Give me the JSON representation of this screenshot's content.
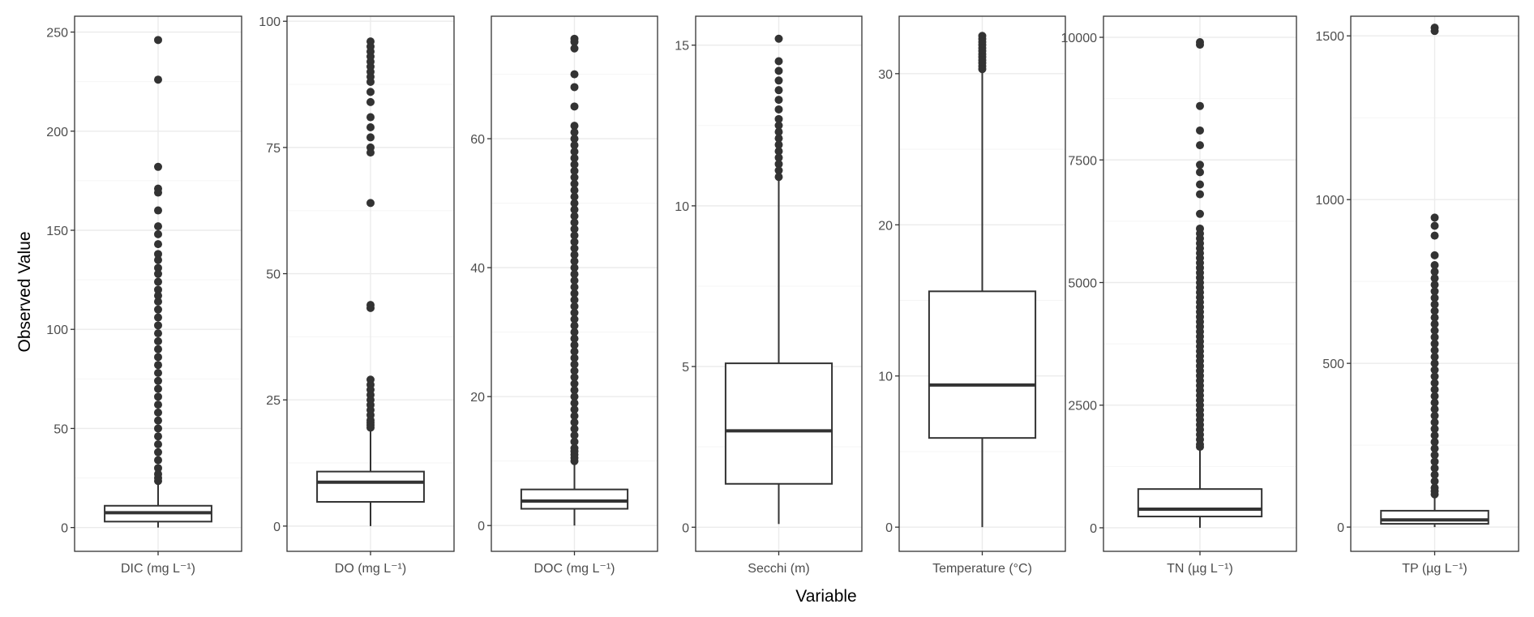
{
  "chart_data": {
    "type": "box",
    "xlabel": "Variable",
    "ylabel": "Observed Value",
    "grid": true,
    "colors": {
      "background": "#ffffff",
      "grid_major": "#ebebeb",
      "grid_minor": "#f5f5f5",
      "box_line": "#333333",
      "outlier": "#333333",
      "panel_border": "#333333",
      "tick_text": "#4d4d4d"
    },
    "panels": [
      {
        "category": "DIC (mg L⁻¹)",
        "ylim": [
          -12,
          258
        ],
        "yticks": [
          0,
          50,
          100,
          150,
          200,
          250
        ],
        "tick_labels": [
          "0",
          "50",
          "100",
          "150",
          "200",
          "250"
        ],
        "box": {
          "min": 0,
          "q1": 3,
          "median": 7.5,
          "q3": 11,
          "max": 23
        },
        "outliers": [
          246,
          226,
          182,
          171,
          169,
          160,
          152,
          148,
          143,
          138,
          135,
          131,
          128,
          124,
          120,
          117,
          114,
          110,
          106,
          102,
          98,
          94,
          90,
          86,
          82,
          78,
          74,
          70,
          66,
          62,
          58,
          54,
          50,
          46,
          42,
          38,
          34,
          30,
          27,
          25,
          23.5
        ]
      },
      {
        "category": "DO (mg L⁻¹)",
        "ylim": [
          -5,
          101
        ],
        "yticks": [
          0,
          25,
          50,
          75,
          100
        ],
        "tick_labels": [
          "0",
          "25",
          "50",
          "75",
          "100"
        ],
        "box": {
          "min": 0,
          "q1": 4.8,
          "median": 8.7,
          "q3": 10.8,
          "max": 19
        },
        "outliers": [
          96,
          95,
          94,
          93,
          92,
          91,
          90,
          89,
          88,
          86,
          84,
          81,
          79,
          77,
          75,
          74,
          64,
          43.8,
          43.2,
          29,
          28,
          27,
          26,
          25,
          24,
          23,
          22,
          21,
          20.5,
          20,
          19.5
        ]
      },
      {
        "category": "DOC (mg L⁻¹)",
        "ylim": [
          -4,
          79
        ],
        "yticks": [
          0,
          20,
          40,
          60
        ],
        "tick_labels": [
          "0",
          "20",
          "40",
          "60"
        ],
        "box": {
          "min": 0,
          "q1": 2.6,
          "median": 3.8,
          "q3": 5.6,
          "max": 10
        },
        "outliers": [
          75.5,
          75,
          74,
          70,
          68,
          65,
          62,
          61,
          60,
          59,
          58,
          57,
          56,
          55,
          54,
          53,
          52,
          51,
          50,
          49,
          48,
          47,
          46,
          45,
          44,
          43,
          42,
          41,
          40,
          39,
          38,
          37,
          36,
          35,
          34,
          33,
          32,
          31,
          30,
          29,
          28,
          27,
          26,
          25,
          24,
          23,
          22,
          21,
          20,
          19,
          18,
          17,
          16,
          15,
          14,
          13,
          12,
          11.5,
          11,
          10.5,
          10
        ]
      },
      {
        "category": "Secchi (m)",
        "ylim": [
          -0.75,
          15.9
        ],
        "yticks": [
          0,
          5,
          10,
          15
        ],
        "tick_labels": [
          "0",
          "5",
          "10",
          "15"
        ],
        "box": {
          "min": 0.1,
          "q1": 1.35,
          "median": 3,
          "q3": 5.1,
          "max": 10.8
        },
        "outliers": [
          15.2,
          14.5,
          14.2,
          13.9,
          13.6,
          13.3,
          13.0,
          12.7,
          12.5,
          12.3,
          12.1,
          11.9,
          11.7,
          11.5,
          11.3,
          11.1,
          10.9
        ]
      },
      {
        "category": "Temperature (°C)",
        "ylim": [
          -1.6,
          33.8
        ],
        "yticks": [
          0,
          10,
          20,
          30
        ],
        "tick_labels": [
          "0",
          "10",
          "20",
          "30"
        ],
        "box": {
          "min": 0,
          "q1": 5.9,
          "median": 9.4,
          "q3": 15.6,
          "max": 30.3
        },
        "outliers": [
          32.5,
          32.3,
          32.1,
          31.9,
          31.7,
          31.5,
          31.3,
          31.1,
          30.9,
          30.7,
          30.5,
          30.3
        ]
      },
      {
        "category": "TN (µg L⁻¹)",
        "ylim": [
          -480,
          10430
        ],
        "yticks": [
          0,
          2500,
          5000,
          7500,
          10000
        ],
        "tick_labels": [
          "0",
          "2500",
          "5000",
          "7500",
          "10000"
        ],
        "box": {
          "min": 0,
          "q1": 230,
          "median": 380,
          "q3": 790,
          "max": 1600
        },
        "outliers": [
          9900,
          9850,
          8600,
          8100,
          7800,
          7400,
          7250,
          7000,
          6800,
          6400,
          6100,
          6000,
          5900,
          5800,
          5700,
          5600,
          5500,
          5400,
          5300,
          5200,
          5100,
          5000,
          4900,
          4800,
          4700,
          4600,
          4500,
          4400,
          4300,
          4200,
          4100,
          4000,
          3900,
          3800,
          3700,
          3600,
          3500,
          3400,
          3300,
          3200,
          3100,
          3000,
          2900,
          2800,
          2700,
          2600,
          2500,
          2400,
          2300,
          2200,
          2100,
          2000,
          1900,
          1800,
          1700,
          1650
        ]
      },
      {
        "category": "TP (µg L⁻¹)",
        "ylim": [
          -74,
          1560
        ],
        "yticks": [
          0,
          500,
          1000,
          1500
        ],
        "tick_labels": [
          "0",
          "500",
          "1000",
          "1500"
        ],
        "box": {
          "min": 0,
          "q1": 10,
          "median": 22,
          "q3": 50,
          "max": 100
        },
        "outliers": [
          1525,
          1515,
          945,
          920,
          890,
          830,
          800,
          780,
          760,
          740,
          720,
          700,
          680,
          660,
          640,
          620,
          600,
          580,
          560,
          540,
          520,
          500,
          480,
          460,
          440,
          420,
          400,
          380,
          360,
          340,
          320,
          300,
          280,
          260,
          240,
          220,
          200,
          180,
          160,
          140,
          120,
          110,
          100
        ]
      }
    ]
  }
}
